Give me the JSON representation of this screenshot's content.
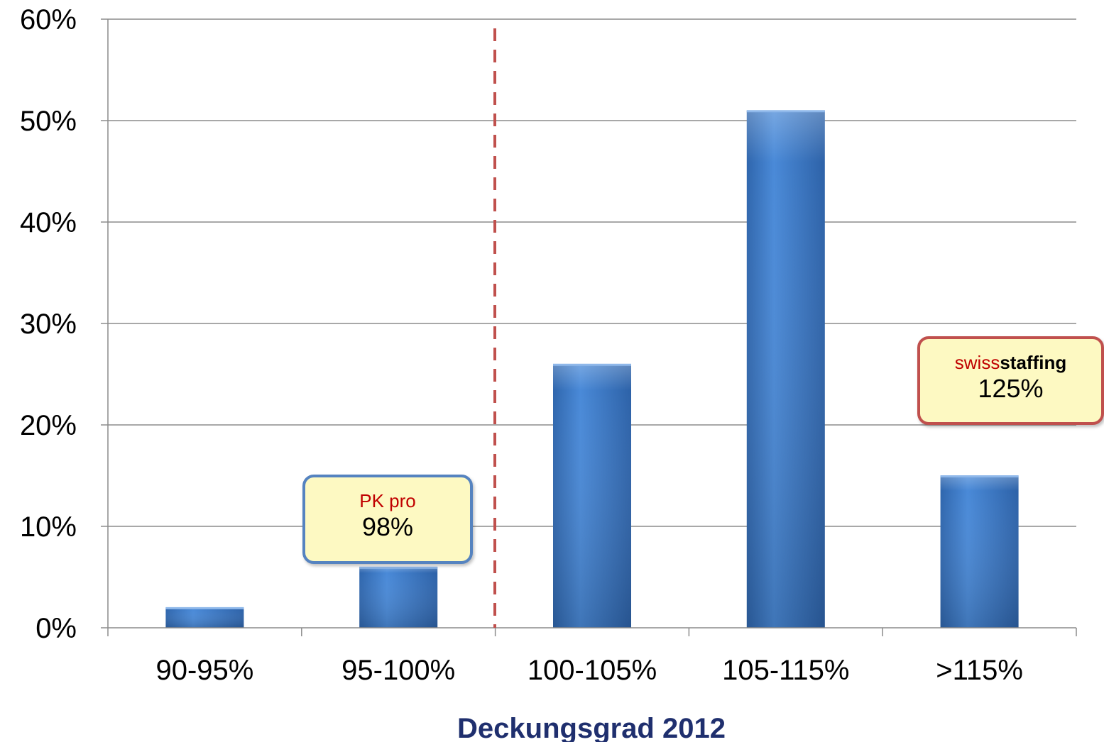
{
  "chart_data": {
    "type": "bar",
    "categories": [
      "90-95%",
      "95-100%",
      "100-105%",
      "105-115%",
      ">115%"
    ],
    "values": [
      2,
      6,
      26,
      51,
      15
    ],
    "xlabel": "Deckungsgrad 2012",
    "ylabel": "",
    "ylim": [
      0,
      60
    ],
    "yticks": [
      "0%",
      "10%",
      "20%",
      "30%",
      "40%",
      "50%",
      "60%"
    ],
    "grid": true,
    "bar_color": "#3d7cc9",
    "reference_line": {
      "x": 100,
      "style": "dashed",
      "color": "#c0504d",
      "position": "between 95-100% and 100-105%"
    },
    "annotations": [
      {
        "title": "PK pro",
        "value": "98%",
        "near_category": "95-100%",
        "border_color": "#5583c0"
      },
      {
        "title_prefix": "swiss",
        "title_bold": "staffing",
        "value": "125%",
        "near_category": ">115%",
        "border_color": "#c0504d"
      }
    ]
  }
}
